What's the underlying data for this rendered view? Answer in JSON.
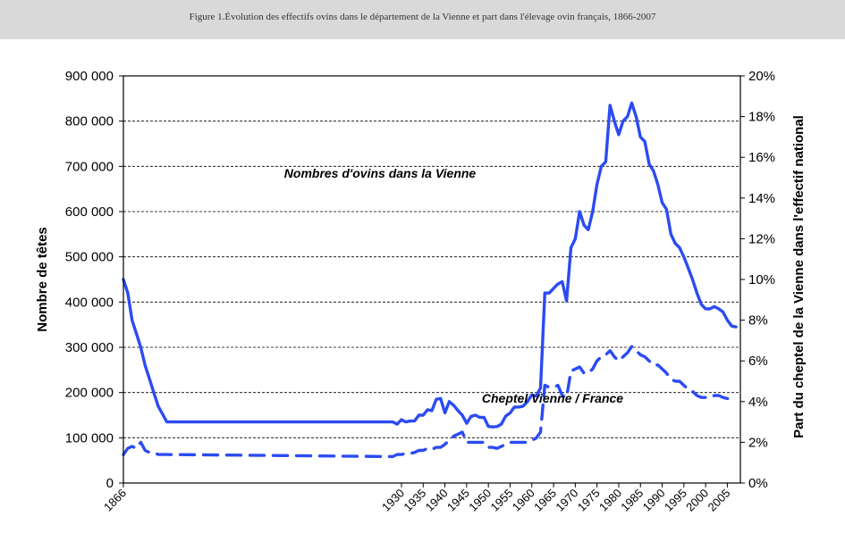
{
  "caption": "Figure 1.Évolution des effectifs ovins dans le département de la Vienne et part dans l'élevage ovin français, 1866-2007",
  "chart_data": {
    "type": "line",
    "ylabel": "Nombre de têtes",
    "y2label": "Part du cheptel de la Vienne dans l'effectif national",
    "ylim": [
      0,
      900000
    ],
    "y2lim": [
      0,
      20
    ],
    "xlim": [
      1866,
      2008
    ],
    "grid": true,
    "x_ticks": [
      "1866",
      "1930",
      "1935",
      "1940",
      "1945",
      "1950",
      "1955",
      "1960",
      "1965",
      "1970",
      "1975",
      "1980",
      "1985",
      "1990",
      "1995",
      "2000",
      "2005"
    ],
    "y_ticks": [
      "0",
      "100 000",
      "200 000",
      "300 000",
      "400 000",
      "500 000",
      "600 000",
      "700 000",
      "800 000",
      "900 000"
    ],
    "y2_ticks": [
      "0%",
      "2%",
      "4%",
      "6%",
      "8%",
      "10%",
      "12%",
      "14%",
      "16%",
      "18%",
      "20%"
    ],
    "annotations": {
      "series1": "Nombres d'ovins dans la Vienne",
      "series2": "Cheptel Vienne / France"
    },
    "colors": {
      "line": "#2b4bf2",
      "grid": "#000000"
    },
    "series": [
      {
        "axis": "left",
        "style": "solid",
        "x": [
          "1866",
          "1867",
          "1868",
          "1869",
          "1870",
          "1871",
          "1872",
          "1873",
          "1874",
          "1876",
          "1928",
          "1929",
          "1930",
          "1931",
          "1932",
          "1933",
          "1934",
          "1935",
          "1936",
          "1937",
          "1938",
          "1939",
          "1940",
          "1941",
          "1942",
          "1943",
          "1944",
          "1945",
          "1946",
          "1947",
          "1948",
          "1949",
          "1950",
          "1951",
          "1952",
          "1953",
          "1954",
          "1955",
          "1956",
          "1957",
          "1958",
          "1959",
          "1960",
          "1961",
          "1962",
          "1963",
          "1964",
          "1965",
          "1966",
          "1967",
          "1968",
          "1969",
          "1970",
          "1971",
          "1972",
          "1973",
          "1974",
          "1975",
          "1976",
          "1977",
          "1978",
          "1979",
          "1980",
          "1981",
          "1982",
          "1983",
          "1984",
          "1985",
          "1986",
          "1987",
          "1988",
          "1989",
          "1990",
          "1991",
          "1992",
          "1993",
          "1994",
          "1995",
          "1996",
          "1997",
          "1998",
          "1999",
          "2000",
          "2001",
          "2002",
          "2003",
          "2004",
          "2005",
          "2006",
          "2007"
        ],
        "values": [
          450000,
          420000,
          360000,
          330000,
          300000,
          260000,
          230000,
          200000,
          170000,
          135000,
          135000,
          130000,
          140000,
          135000,
          137000,
          137000,
          150000,
          150000,
          162000,
          160000,
          185000,
          187000,
          155000,
          180000,
          172000,
          160000,
          150000,
          132000,
          147000,
          150000,
          145000,
          145000,
          125000,
          124000,
          125000,
          130000,
          148000,
          155000,
          168000,
          168000,
          170000,
          180000,
          195000,
          192000,
          210000,
          420000,
          420000,
          430000,
          440000,
          445000,
          402000,
          520000,
          540000,
          600000,
          570000,
          560000,
          600000,
          660000,
          700000,
          710000,
          835000,
          800000,
          770000,
          800000,
          810000,
          840000,
          810000,
          765000,
          755000,
          705000,
          690000,
          660000,
          620000,
          605000,
          550000,
          530000,
          520000,
          500000,
          475000,
          450000,
          420000,
          395000,
          385000,
          385000,
          390000,
          385000,
          378000,
          360000,
          347000,
          345000
        ]
      },
      {
        "axis": "right",
        "style": "dashed",
        "x": [
          "1866",
          "1867",
          "1868",
          "1869",
          "1870",
          "1871",
          "1872",
          "1873",
          "1874",
          "1876",
          "1928",
          "1929",
          "1930",
          "1931",
          "1932",
          "1933",
          "1934",
          "1935",
          "1936",
          "1937",
          "1938",
          "1939",
          "1940",
          "1941",
          "1942",
          "1943",
          "1944",
          "1945",
          "1946",
          "1947",
          "1948",
          "1949",
          "1950",
          "1951",
          "1952",
          "1953",
          "1954",
          "1955",
          "1956",
          "1957",
          "1958",
          "1959",
          "1960",
          "1961",
          "1962",
          "1963",
          "1964",
          "1965",
          "1966",
          "1967",
          "1968",
          "1969",
          "1970",
          "1971",
          "1972",
          "1973",
          "1974",
          "1975",
          "1976",
          "1977",
          "1978",
          "1979",
          "1980",
          "1981",
          "1982",
          "1983",
          "1984",
          "1985",
          "1986",
          "1987",
          "1988",
          "1989",
          "1990",
          "1991",
          "1992",
          "1993",
          "1994",
          "1995",
          "1996",
          "1997",
          "1998",
          "1999",
          "2000",
          "2001",
          "2002",
          "2003",
          "2004",
          "2005",
          "2006",
          "2007"
        ],
        "values": [
          1.4,
          1.7,
          1.8,
          1.7,
          2.0,
          1.6,
          1.5,
          1.5,
          1.4,
          1.4,
          1.3,
          1.4,
          1.4,
          1.45,
          1.45,
          1.5,
          1.6,
          1.6,
          1.7,
          1.65,
          1.75,
          1.75,
          1.9,
          2.1,
          2.3,
          2.4,
          2.5,
          2.0,
          2.0,
          2.0,
          2.0,
          2.0,
          1.75,
          1.75,
          1.7,
          1.8,
          1.9,
          2.0,
          2.0,
          2.0,
          2.0,
          2.0,
          2.1,
          2.2,
          2.5,
          4.8,
          4.7,
          4.7,
          4.8,
          4.3,
          4.2,
          5.5,
          5.6,
          5.7,
          5.4,
          5.4,
          5.6,
          6.0,
          6.2,
          6.3,
          6.5,
          6.2,
          6.0,
          6.2,
          6.4,
          6.7,
          6.5,
          6.3,
          6.2,
          6.0,
          5.8,
          5.8,
          5.6,
          5.4,
          5.1,
          5.0,
          5.0,
          4.8,
          4.6,
          4.5,
          4.3,
          4.2,
          4.2,
          4.2,
          4.3,
          4.3,
          4.2,
          4.15,
          4.1,
          4.1
        ]
      }
    ]
  }
}
